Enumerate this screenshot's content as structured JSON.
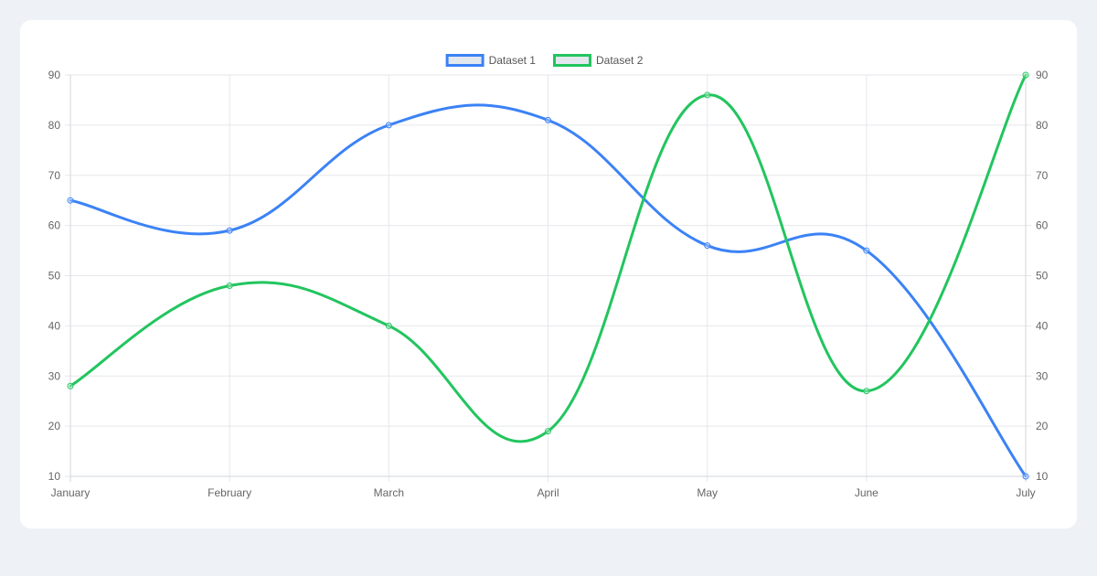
{
  "chart_data": {
    "type": "line",
    "title": "",
    "categories": [
      "January",
      "February",
      "March",
      "April",
      "May",
      "June",
      "July"
    ],
    "series": [
      {
        "name": "Dataset 1",
        "color": "#3b82f6",
        "fill": "#e3e7ee",
        "values": [
          65,
          59,
          80,
          81,
          56,
          55,
          10
        ]
      },
      {
        "name": "Dataset 2",
        "color": "#22c55e",
        "fill": "#e3e7ee",
        "values": [
          28,
          48,
          40,
          19,
          86,
          27,
          90
        ]
      }
    ],
    "xlabel": "",
    "ylabel": "",
    "ylim": [
      10,
      90
    ],
    "yticks": [
      10,
      20,
      30,
      40,
      50,
      60,
      70,
      80,
      90
    ],
    "y_axis_left": true,
    "y_axis_right": true,
    "grid": true,
    "curve": "smooth",
    "legend_position": "top"
  },
  "colors": {
    "page_background": "#eef2f7",
    "card_background": "#ffffff",
    "grid": "#e5e7eb",
    "axis": "#d1d5db"
  }
}
